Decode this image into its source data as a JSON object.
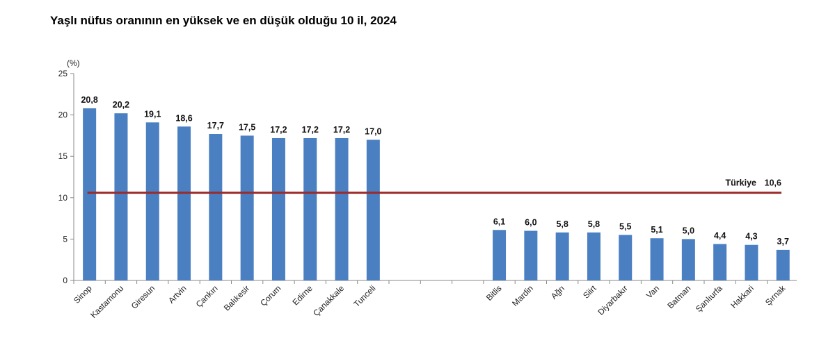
{
  "title": "Yaşlı nüfus oranının en yüksek ve en düşük olduğu 10 il, 2024",
  "chart_data": {
    "type": "bar",
    "title": "Yaşlı nüfus oranının en yüksek ve en düşük olduğu 10 il, 2024",
    "unit_label": "(%)",
    "xlabel": "",
    "ylabel": "",
    "ylim": [
      0,
      25
    ],
    "yticks": [
      0,
      5,
      10,
      15,
      20,
      25
    ],
    "bar_color": "#4a7fc1",
    "groups": [
      {
        "categories": [
          "Sinop",
          "Kastamonu",
          "Giresun",
          "Artvin",
          "Çankırı",
          "Balıkesir",
          "Çorum",
          "Edirne",
          "Çanakkale",
          "Tunceli"
        ],
        "values": [
          20.8,
          20.2,
          19.1,
          18.6,
          17.7,
          17.5,
          17.2,
          17.2,
          17.2,
          17.0
        ],
        "labels": [
          "20,8",
          "20,2",
          "19,1",
          "18,6",
          "17,7",
          "17,5",
          "17,2",
          "17,2",
          "17,2",
          "17,0"
        ]
      },
      {
        "categories": [
          "Bitlis",
          "Mardin",
          "Ağrı",
          "Siirt",
          "Diyarbakır",
          "Van",
          "Batman",
          "Şanlıurfa",
          "Hakkari",
          "Şırnak"
        ],
        "values": [
          6.1,
          6.0,
          5.8,
          5.8,
          5.5,
          5.1,
          5.0,
          4.4,
          4.3,
          3.7
        ],
        "labels": [
          "6,1",
          "6,0",
          "5,8",
          "5,8",
          "5,5",
          "5,1",
          "5,0",
          "4,4",
          "4,3",
          "3,7"
        ]
      }
    ],
    "reference_line": {
      "name": "Türkiye",
      "value": 10.6,
      "label": "10,6",
      "color": "#9b2a2a"
    }
  }
}
